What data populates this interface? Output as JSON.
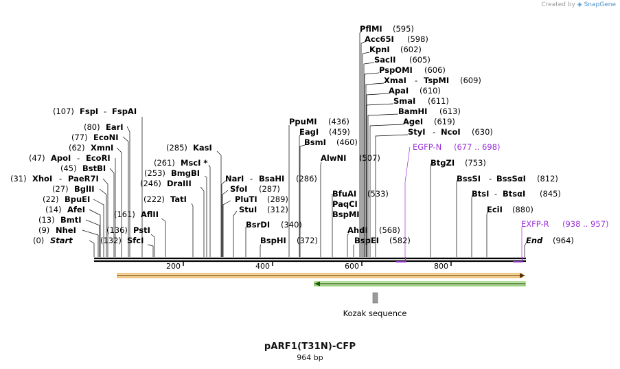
{
  "credit": {
    "prefix": "Created by",
    "brand": "SnapGene"
  },
  "title": "pARF1(T31N)-CFP",
  "subtitle": "964 bp",
  "scale": {
    "ticks": [
      "200",
      "400",
      "600",
      "800"
    ]
  },
  "features": {
    "kozak_label": "Kozak sequence"
  },
  "sites": [
    {
      "left": "(0)",
      "name": "Start",
      "italic": true
    },
    {
      "left": "(9)",
      "name": "NheI"
    },
    {
      "left": "(13)",
      "name": "BmtI"
    },
    {
      "left": "(14)",
      "name": "AfeI"
    },
    {
      "left": "(22)",
      "name": "BpuEI"
    },
    {
      "left": "(27)",
      "name": "BglII"
    },
    {
      "left": "(31)",
      "name": "XhoI",
      "name2": "PaeR7I"
    },
    {
      "left": "(45)",
      "name": "BstBI"
    },
    {
      "left": "(47)",
      "name": "ApoI",
      "name2": "EcoRI"
    },
    {
      "left": "(62)",
      "name": "XmnI"
    },
    {
      "left": "(77)",
      "name": "EcoNI"
    },
    {
      "left": "(80)",
      "name": "EarI"
    },
    {
      "left": "(107)",
      "name": "FspI",
      "name2": "FspAI"
    },
    {
      "right": "(132)",
      "name": "SfcI"
    },
    {
      "right": "(136)",
      "name": "PstI"
    },
    {
      "right": "(161)",
      "name": "AflII"
    },
    {
      "left": "(222)",
      "name": "TatI"
    },
    {
      "left": "(246)",
      "name": "DraIII"
    },
    {
      "left": "(253)",
      "name": "BmgBI"
    },
    {
      "left": "(261)",
      "name": "MscI *"
    },
    {
      "left": "(285)",
      "name": "KasI"
    },
    {
      "right": "(286)",
      "name": "NarI",
      "name2": "BsaHI"
    },
    {
      "right": "(287)",
      "name": "SfoI"
    },
    {
      "right": "(289)",
      "name": "PluTI"
    },
    {
      "right": "(312)",
      "name": "StuI"
    },
    {
      "right": "(340)",
      "name": "BsrDI"
    },
    {
      "right": "(372)",
      "name": "BspHI"
    },
    {
      "right": "(436)",
      "name": "PpuMI"
    },
    {
      "right": "(459)",
      "name": "EagI"
    },
    {
      "right": "(460)",
      "name": "BsmI"
    },
    {
      "right": "(507)",
      "name": "AlwNI"
    },
    {
      "right": "(533)",
      "name": "BfuAI"
    },
    {
      "name": "PaqCI"
    },
    {
      "name": "BspMI"
    },
    {
      "right": "(568)",
      "name": "AhdI"
    },
    {
      "right": "(582)",
      "name": "BspEI"
    },
    {
      "right": "(595)",
      "name": "PflMI"
    },
    {
      "right": "(598)",
      "name": "Acc65I"
    },
    {
      "right": "(602)",
      "name": "KpnI"
    },
    {
      "right": "(605)",
      "name": "SacII"
    },
    {
      "right": "(606)",
      "name": "PspOMI"
    },
    {
      "right": "(609)",
      "name": "XmaI",
      "name2": "TspMI"
    },
    {
      "right": "(610)",
      "name": "ApaI"
    },
    {
      "right": "(611)",
      "name": "SmaI"
    },
    {
      "right": "(613)",
      "name": "BamHI"
    },
    {
      "right": "(619)",
      "name": "AgeI"
    },
    {
      "right": "(630)",
      "name": "StyI",
      "name2": "NcoI"
    },
    {
      "right": "(753)",
      "name": "BtgZI"
    },
    {
      "right": "(812)",
      "name": "BssSI",
      "name2": "BssSαI"
    },
    {
      "right": "(845)",
      "name": "BtsI",
      "name2": "BtsαI"
    },
    {
      "right": "(880)",
      "name": "EciI"
    },
    {
      "right": "(964)",
      "name": "End",
      "italic": true
    }
  ],
  "primers": [
    {
      "name": "EGFP-N",
      "range": "(677 .. 698)",
      "color": "#9b30d9"
    },
    {
      "name": "EXFP-R",
      "range": "(938 .. 957)",
      "color": "#9b30d9"
    }
  ],
  "colors": {
    "orange_feature": "#e8a23a",
    "green_feature": "#6bbf3a",
    "kozak": "#999999",
    "primer": "#9b30d9"
  }
}
